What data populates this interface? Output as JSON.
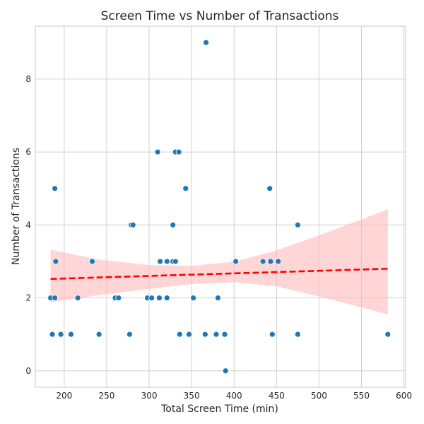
{
  "chart_data": {
    "type": "scatter",
    "title": "Screen Time vs Number of Transactions",
    "xlabel": "Total Screen Time (min)",
    "ylabel": "Number of Transactions",
    "xlim": [
      166,
      602
    ],
    "ylim": [
      -0.45,
      9.45
    ],
    "xticks": [
      200,
      250,
      300,
      350,
      400,
      450,
      500,
      550,
      600
    ],
    "yticks": [
      0,
      2,
      4,
      6,
      8
    ],
    "grid": true,
    "colors": {
      "points": "#1f77b4",
      "trend": "#ff0000",
      "band": "#ffb3b3"
    },
    "points": [
      {
        "x": 184,
        "y": 2
      },
      {
        "x": 186,
        "y": 1
      },
      {
        "x": 189,
        "y": 5
      },
      {
        "x": 190,
        "y": 3
      },
      {
        "x": 189,
        "y": 2
      },
      {
        "x": 196,
        "y": 1
      },
      {
        "x": 208,
        "y": 1
      },
      {
        "x": 216,
        "y": 2
      },
      {
        "x": 233,
        "y": 3
      },
      {
        "x": 241,
        "y": 1
      },
      {
        "x": 260,
        "y": 2
      },
      {
        "x": 264,
        "y": 2
      },
      {
        "x": 277,
        "y": 1
      },
      {
        "x": 279,
        "y": 4
      },
      {
        "x": 281,
        "y": 4
      },
      {
        "x": 298,
        "y": 2
      },
      {
        "x": 303,
        "y": 2
      },
      {
        "x": 310,
        "y": 6
      },
      {
        "x": 312,
        "y": 2
      },
      {
        "x": 313,
        "y": 3
      },
      {
        "x": 321,
        "y": 3
      },
      {
        "x": 321,
        "y": 2
      },
      {
        "x": 328,
        "y": 3
      },
      {
        "x": 328,
        "y": 4
      },
      {
        "x": 331,
        "y": 3
      },
      {
        "x": 331,
        "y": 6
      },
      {
        "x": 335,
        "y": 6
      },
      {
        "x": 336,
        "y": 1
      },
      {
        "x": 343,
        "y": 5
      },
      {
        "x": 347,
        "y": 1
      },
      {
        "x": 352,
        "y": 2
      },
      {
        "x": 366,
        "y": 1
      },
      {
        "x": 367,
        "y": 9
      },
      {
        "x": 379,
        "y": 1
      },
      {
        "x": 381,
        "y": 2
      },
      {
        "x": 389,
        "y": 1
      },
      {
        "x": 390,
        "y": 0
      },
      {
        "x": 402,
        "y": 3
      },
      {
        "x": 434,
        "y": 3
      },
      {
        "x": 442,
        "y": 5
      },
      {
        "x": 443,
        "y": 3
      },
      {
        "x": 445,
        "y": 1
      },
      {
        "x": 452,
        "y": 3
      },
      {
        "x": 475,
        "y": 4
      },
      {
        "x": 475,
        "y": 1
      },
      {
        "x": 581,
        "y": 1
      }
    ],
    "trend_line": {
      "x": [
        184,
        581
      ],
      "y": [
        2.52,
        2.8
      ]
    },
    "confidence_band": {
      "x": [
        184,
        240,
        300,
        350,
        400,
        450,
        500,
        550,
        581
      ],
      "upper": [
        3.32,
        3.05,
        2.9,
        2.88,
        2.99,
        3.3,
        3.71,
        4.15,
        4.43
      ],
      "lower": [
        1.88,
        2.07,
        2.25,
        2.38,
        2.43,
        2.32,
        2.04,
        1.74,
        1.55
      ]
    }
  }
}
